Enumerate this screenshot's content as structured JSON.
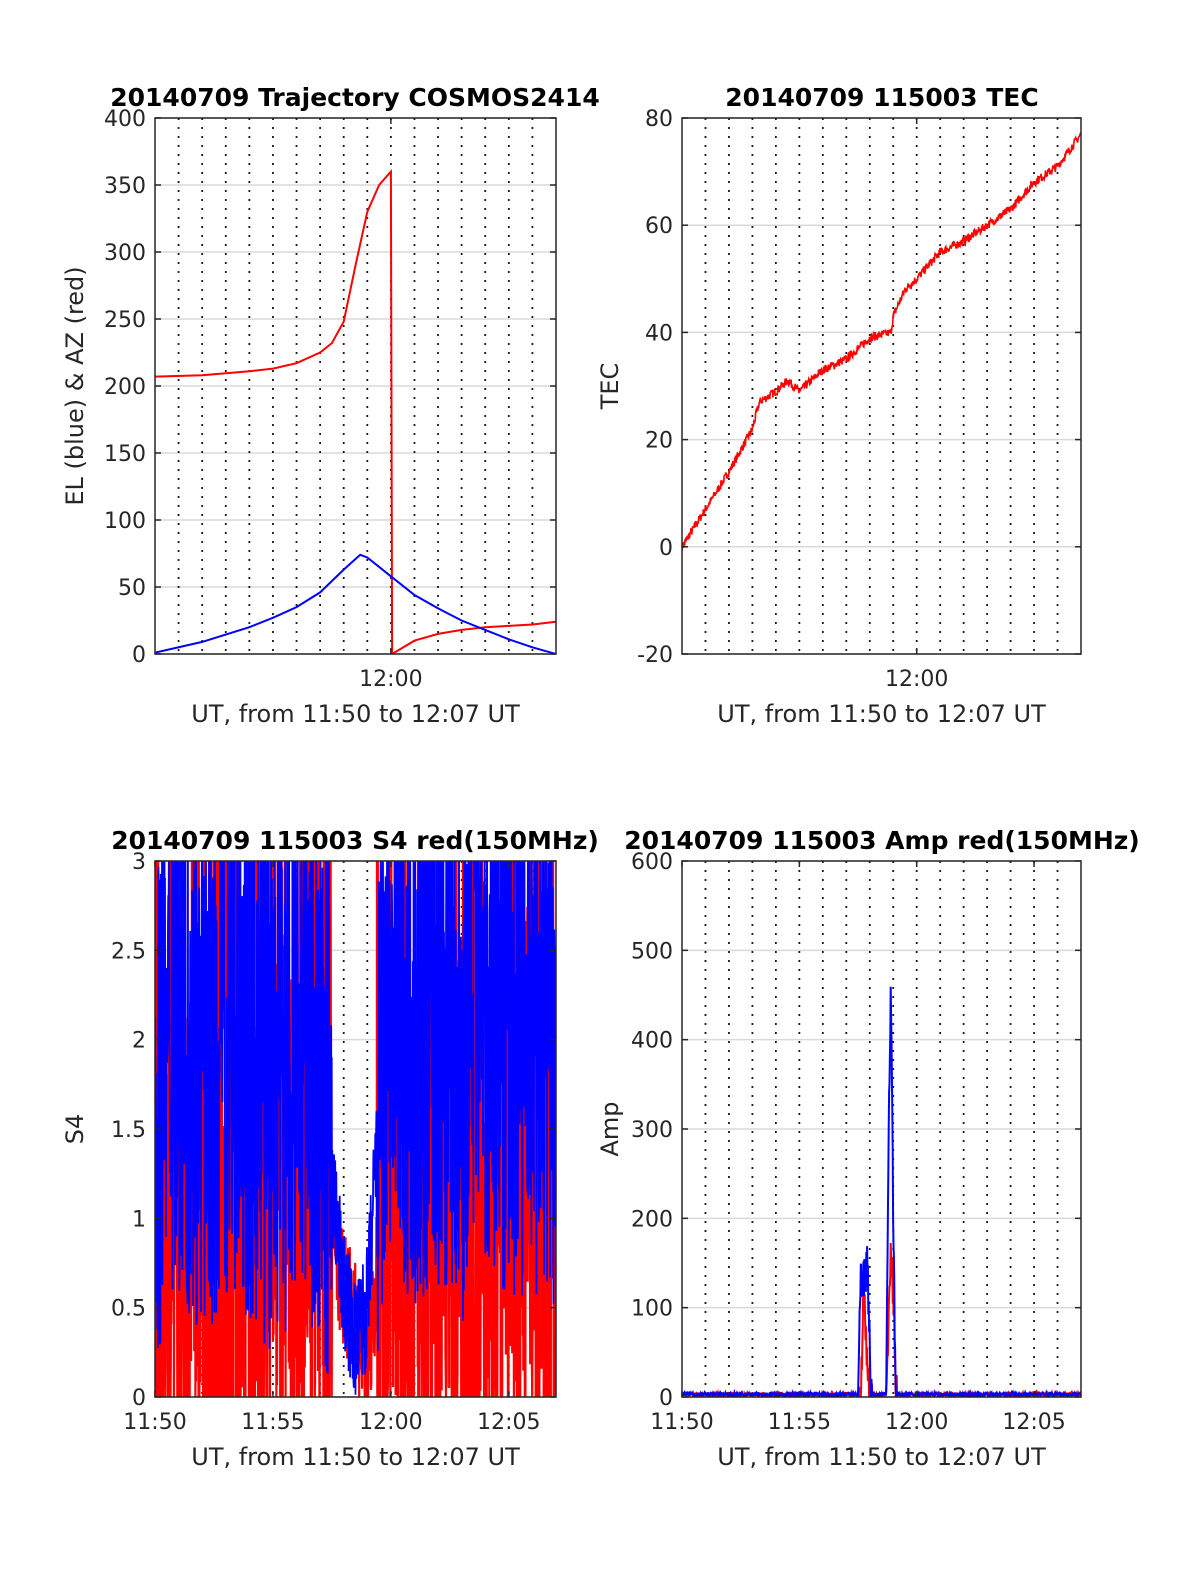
{
  "colors": {
    "red": "#ff0000",
    "blue": "#0000ff",
    "grid": "#d9d9d9",
    "axis": "#262626"
  },
  "chart_data": [
    {
      "type": "line",
      "title": "20140709 Trajectory COSMOS2414",
      "xlabel": "UT, from 11:50 to 12:07 UT",
      "ylabel": "EL (blue) & AZ (red)",
      "xlim": [
        "11:50",
        "12:07"
      ],
      "ylim": [
        0,
        400
      ],
      "xticks": [
        "12:00"
      ],
      "yticks": [
        0,
        50,
        100,
        150,
        200,
        250,
        300,
        350,
        400
      ],
      "grid": true,
      "minute_gridlines": true,
      "series": [
        {
          "color": "#ff0000",
          "x": [
            "11:50",
            "11:52",
            "11:54",
            "11:55",
            "11:56",
            "11:57",
            "11:57.5",
            "11:58",
            "11:58.5",
            "11:59",
            "11:59.5",
            "11:59.9",
            "12:00",
            "12:00.05",
            "12:01",
            "12:02",
            "12:03",
            "12:04",
            "12:05",
            "12:06",
            "12:07"
          ],
          "y": [
            207,
            208,
            211,
            213,
            217,
            225,
            232,
            248,
            290,
            330,
            350,
            358,
            360,
            0,
            10,
            15,
            18,
            20,
            21,
            22,
            24
          ]
        },
        {
          "color": "#0000ff",
          "x": [
            "11:50",
            "11:52",
            "11:54",
            "11:55",
            "11:56",
            "11:57",
            "11:58",
            "11:58.7",
            "11:59",
            "12:00",
            "12:01",
            "12:02",
            "12:03",
            "12:04",
            "12:05",
            "12:06",
            "12:07"
          ],
          "y": [
            1,
            9,
            20,
            27,
            35,
            46,
            63,
            74,
            72,
            58,
            44,
            34,
            25,
            18,
            11,
            5,
            0
          ]
        }
      ]
    },
    {
      "type": "line",
      "title": "20140709 115003 TEC",
      "xlabel": "UT, from 11:50 to 12:07 UT",
      "ylabel": "TEC",
      "xlim": [
        "11:50",
        "12:07"
      ],
      "ylim": [
        -20,
        80
      ],
      "xticks": [
        "12:00"
      ],
      "yticks": [
        -20,
        0,
        20,
        40,
        60,
        80
      ],
      "grid": true,
      "minute_gridlines": true,
      "series": [
        {
          "color": "#ff0000",
          "x": [
            "11:50",
            "11:51",
            "11:52",
            "11:53",
            "11:53.3",
            "11:54",
            "11:54.5",
            "11:55",
            "11:56",
            "11:57",
            "11:58",
            "11:58.9",
            "11:59",
            "11:59.5",
            "12:00",
            "12:01",
            "12:02",
            "12:03",
            "12:04",
            "12:05",
            "12:06",
            "12:07"
          ],
          "y": [
            0,
            7,
            14,
            22,
            27,
            29,
            31,
            29,
            33,
            35,
            39,
            40,
            43,
            48,
            50,
            55,
            57,
            60,
            63,
            68,
            71,
            77
          ]
        }
      ]
    },
    {
      "type": "line",
      "title": "20140709 115003 S4 red(150MHz)",
      "xlabel": "UT, from 11:50 to 12:07 UT",
      "ylabel": "S4",
      "xlim": [
        "11:50",
        "12:07"
      ],
      "ylim": [
        0,
        3
      ],
      "xticks": [
        "11:50",
        "11:55",
        "12:00",
        "12:05"
      ],
      "yticks": [
        0,
        0.5,
        1,
        1.5,
        2,
        2.5,
        3
      ],
      "grid": true,
      "minute_gridlines": true,
      "series": [
        {
          "color": "#ff0000",
          "x": [
            "11:50",
            "11:51",
            "11:52",
            "11:53",
            "11:54",
            "11:55",
            "11:56",
            "11:57",
            "11:57.5",
            "11:58",
            "11:58.5",
            "11:59",
            "11:59.5",
            "12:00",
            "12:01",
            "12:02",
            "12:03",
            "12:04",
            "12:05",
            "12:06",
            "12:07"
          ],
          "y": [
            1.3,
            0.9,
            1.1,
            0.8,
            1.0,
            1.2,
            1.4,
            1.5,
            0.9,
            0.6,
            0.4,
            0.2,
            0.8,
            1.3,
            1.1,
            1.2,
            1.3,
            1.0,
            1.2,
            1.5,
            1.1
          ]
        },
        {
          "color": "#0000ff",
          "x": [
            "11:50",
            "11:51",
            "11:52",
            "11:53",
            "11:54",
            "11:55",
            "11:56",
            "11:57",
            "11:57.5",
            "11:58",
            "11:58.5",
            "11:59",
            "11:59.5",
            "12:00",
            "12:01",
            "12:02",
            "12:03",
            "12:04",
            "12:05",
            "12:06",
            "12:07"
          ],
          "y": [
            1.6,
            2.0,
            1.7,
            1.9,
            1.8,
            1.6,
            1.9,
            1.7,
            1.2,
            0.6,
            0.3,
            0.5,
            1.6,
            2.1,
            1.9,
            2.0,
            1.8,
            2.2,
            1.9,
            2.0,
            1.8
          ]
        }
      ]
    },
    {
      "type": "line",
      "title": "20140709 115003 Amp red(150MHz)",
      "xlabel": "UT, from 11:50 to 12:07 UT",
      "ylabel": "Amp",
      "xlim": [
        "11:50",
        "12:07"
      ],
      "ylim": [
        0,
        600
      ],
      "xticks": [
        "11:50",
        "11:55",
        "12:00",
        "12:05"
      ],
      "yticks": [
        0,
        100,
        200,
        300,
        400,
        500,
        600
      ],
      "grid": true,
      "minute_gridlines": true,
      "series": [
        {
          "color": "#ff0000",
          "x": [
            "11:50",
            "11:57.5",
            "11:57.6",
            "11:57.75",
            "11:57.9",
            "11:58.05",
            "11:58.2",
            "11:58.7",
            "11:58.8",
            "11:58.9",
            "11:59",
            "11:59.1",
            "11:59.2",
            "12:07"
          ],
          "y": [
            3,
            3,
            0,
            120,
            30,
            0,
            2,
            3,
            80,
            160,
            120,
            5,
            3,
            3
          ]
        },
        {
          "color": "#0000ff",
          "x": [
            "11:50",
            "11:57.5",
            "11:57.6",
            "11:57.75",
            "11:57.9",
            "11:58.05",
            "11:58.2",
            "11:58.7",
            "11:58.8",
            "11:58.9",
            "11:59",
            "11:59.1",
            "11:59.2",
            "12:07"
          ],
          "y": [
            3,
            3,
            130,
            135,
            148,
            5,
            3,
            4,
            300,
            465,
            200,
            5,
            3,
            3
          ]
        }
      ]
    }
  ]
}
